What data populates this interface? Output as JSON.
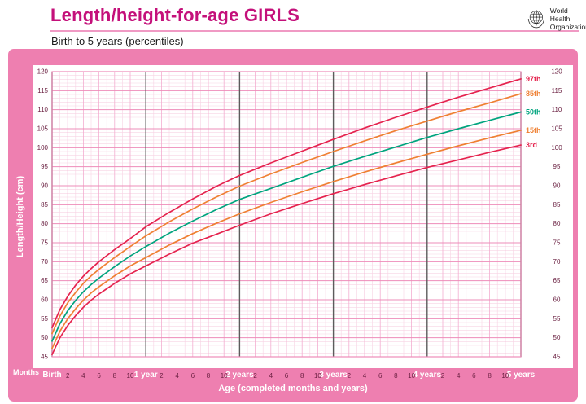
{
  "header": {
    "title": "Length/height-for-age GIRLS",
    "subtitle": "Birth to 5 years (percentiles)",
    "who_line1": "World Health",
    "who_line2": "Organization"
  },
  "colors": {
    "title_magenta": "#c4107a",
    "frame_pink": "#ee7fb0",
    "grid_minor": "#f8d3e4",
    "grid_medium": "#f3aed0",
    "grid_major": "#ee8cb9",
    "year_line": "#5c5c5c",
    "tick_text": "#6b2142",
    "percentile_red": "#e5234e",
    "percentile_orange": "#ef8033",
    "percentile_green": "#00a47e"
  },
  "chart_data": {
    "type": "line",
    "title": "Length/height-for-age GIRLS",
    "subtitle": "Birth to 5 years (percentiles)",
    "xlabel": "Age (completed months and years)",
    "ylabel": "Length/Height (cm)",
    "x_unit_label": "Months",
    "xlim_months": [
      0,
      60
    ],
    "ylim": [
      45,
      120
    ],
    "y_tick_step": 5,
    "grid": true,
    "legend_position": "right-edge-labels",
    "x_year_labels": [
      "Birth",
      "1 year",
      "2 years",
      "3 years",
      "4 years",
      "5 years"
    ],
    "x_month_ticks": [
      2,
      4,
      6,
      8,
      10
    ],
    "x_months": [
      0,
      1,
      2,
      3,
      4,
      5,
      6,
      8,
      10,
      12,
      15,
      18,
      21,
      24,
      28,
      32,
      36,
      40,
      44,
      48,
      52,
      56,
      60
    ],
    "series": [
      {
        "name": "97th",
        "color": "#e5234e",
        "values": [
          52.7,
          57.4,
          60.9,
          63.8,
          66.2,
          68.2,
          70.0,
          73.2,
          76.1,
          79.2,
          83.0,
          86.5,
          89.8,
          92.7,
          96.0,
          99.1,
          102.2,
          105.2,
          108.0,
          110.7,
          113.3,
          115.7,
          118.1
        ]
      },
      {
        "name": "85th",
        "color": "#ef8033",
        "values": [
          51.1,
          55.7,
          59.2,
          61.9,
          64.3,
          66.3,
          68.0,
          71.1,
          74.0,
          76.8,
          80.5,
          83.9,
          87.0,
          89.9,
          93.1,
          96.1,
          99.0,
          101.8,
          104.5,
          107.0,
          109.5,
          111.8,
          114.2
        ]
      },
      {
        "name": "50th",
        "color": "#00a47e",
        "values": [
          49.1,
          53.7,
          57.1,
          59.8,
          62.1,
          64.0,
          65.7,
          68.7,
          71.5,
          74.0,
          77.5,
          80.7,
          83.7,
          86.4,
          89.3,
          92.2,
          95.1,
          97.7,
          100.2,
          102.7,
          105.0,
          107.2,
          109.4
        ]
      },
      {
        "name": "15th",
        "color": "#ef8033",
        "values": [
          47.2,
          51.7,
          55.0,
          57.6,
          59.9,
          61.8,
          63.4,
          66.3,
          68.9,
          71.1,
          74.4,
          77.4,
          80.1,
          82.6,
          85.6,
          88.4,
          91.1,
          93.6,
          96.0,
          98.3,
          100.5,
          102.6,
          104.6
        ]
      },
      {
        "name": "3rd",
        "color": "#e5234e",
        "values": [
          45.6,
          50.0,
          53.2,
          55.8,
          58.0,
          59.9,
          61.5,
          64.3,
          66.8,
          68.9,
          72.0,
          74.9,
          77.2,
          79.6,
          82.6,
          85.3,
          87.9,
          90.3,
          92.6,
          94.8,
          96.8,
          98.8,
          100.7
        ]
      }
    ]
  }
}
